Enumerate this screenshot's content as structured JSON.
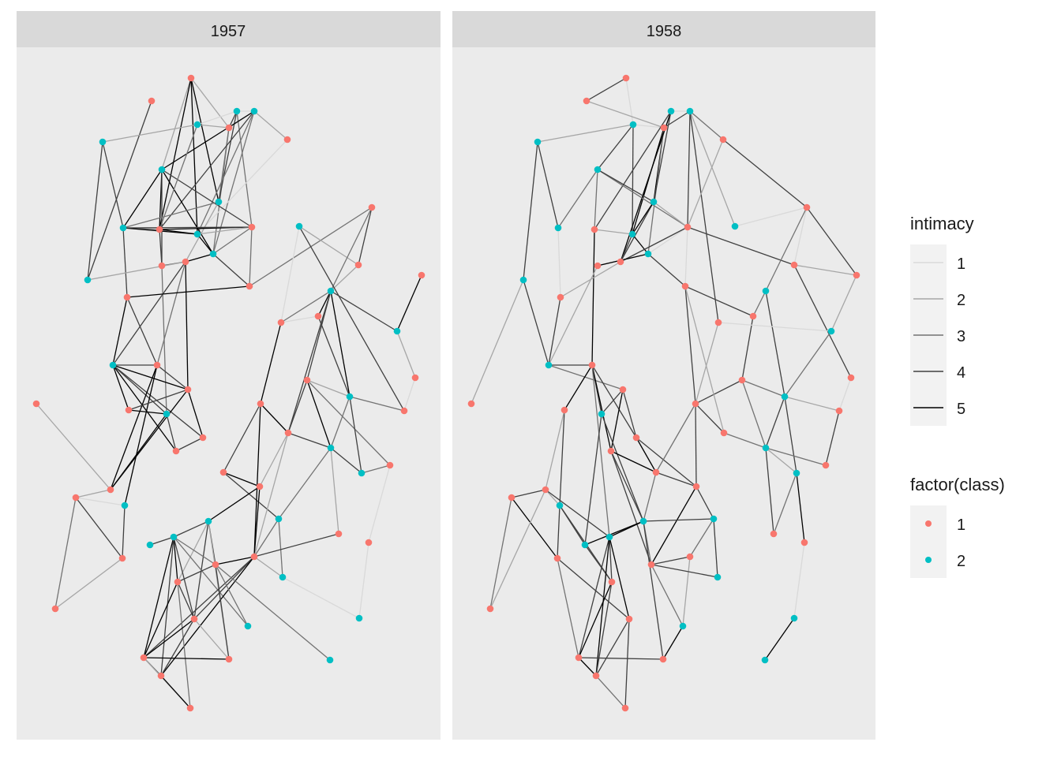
{
  "chart_data": {
    "type": "network",
    "facet_labels": [
      "1957",
      "1958"
    ],
    "legend": {
      "edge_title": "intimacy",
      "edge_levels": [
        "1",
        "2",
        "3",
        "4",
        "5"
      ],
      "node_title": "factor(class)",
      "node_levels": [
        "1",
        "2"
      ]
    },
    "colors": {
      "class_1": "#F8766D",
      "class_2": "#00BFC4",
      "panel_background": "#EBEBEB",
      "strip_background": "#D9D9D9",
      "intimacy_1": "#D9D9D9",
      "intimacy_2": "#A6A6A6",
      "intimacy_3": "#737373",
      "intimacy_4": "#404040",
      "intimacy_5": "#000000"
    }
  }
}
